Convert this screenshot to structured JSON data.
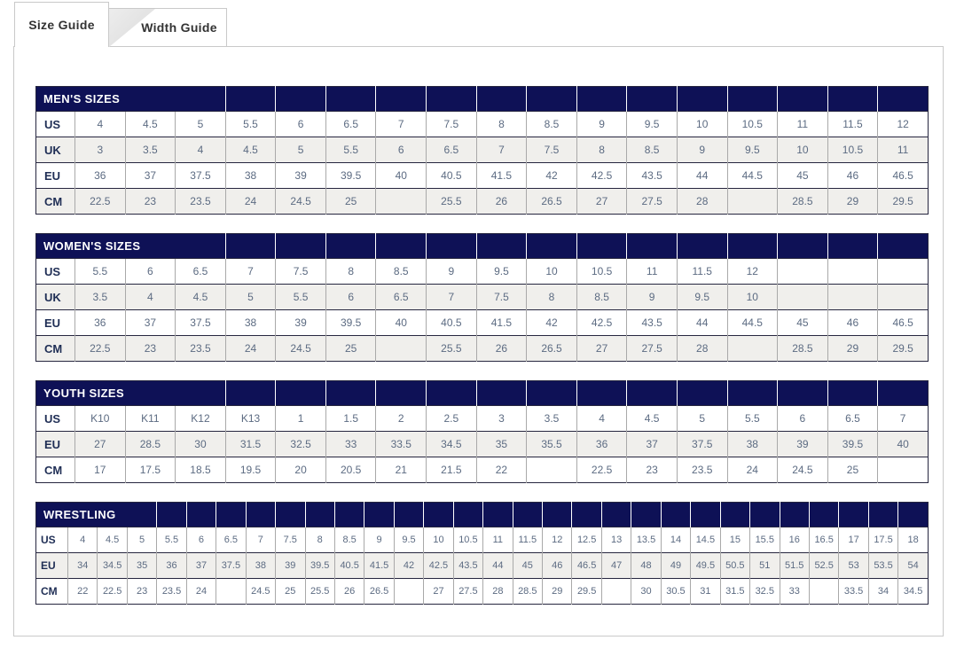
{
  "tabs": [
    {
      "label": "Size Guide",
      "active": true
    },
    {
      "label": "Width Guide",
      "active": false
    }
  ],
  "colors": {
    "table_header_bg": "#0e1156",
    "row_alt_bg": "#f0efec",
    "value_text": "#5c6b82",
    "label_text": "#1f2e55",
    "dark_border": "#26263f",
    "light_border": "#a9a9a9",
    "panel_border": "#c9c9c9"
  },
  "tables": [
    {
      "title": "MEN'S SIZES",
      "rows": [
        {
          "label": "US",
          "values": [
            "4",
            "4.5",
            "5",
            "5.5",
            "6",
            "6.5",
            "7",
            "7.5",
            "8",
            "8.5",
            "9",
            "9.5",
            "10",
            "10.5",
            "11",
            "11.5",
            "12"
          ]
        },
        {
          "label": "UK",
          "values": [
            "3",
            "3.5",
            "4",
            "4.5",
            "5",
            "5.5",
            "6",
            "6.5",
            "7",
            "7.5",
            "8",
            "8.5",
            "9",
            "9.5",
            "10",
            "10.5",
            "11"
          ]
        },
        {
          "label": "EU",
          "values": [
            "36",
            "37",
            "37.5",
            "38",
            "39",
            "39.5",
            "40",
            "40.5",
            "41.5",
            "42",
            "42.5",
            "43.5",
            "44",
            "44.5",
            "45",
            "46",
            "46.5"
          ]
        },
        {
          "label": "CM",
          "values": [
            "22.5",
            "23",
            "23.5",
            "24",
            "24.5",
            "25",
            "",
            "25.5",
            "26",
            "26.5",
            "27",
            "27.5",
            "28",
            "",
            "28.5",
            "29",
            "29.5"
          ]
        }
      ]
    },
    {
      "title": "WOMEN'S SIZES",
      "rows": [
        {
          "label": "US",
          "values": [
            "5.5",
            "6",
            "6.5",
            "7",
            "7.5",
            "8",
            "8.5",
            "9",
            "9.5",
            "10",
            "10.5",
            "11",
            "11.5",
            "12",
            "",
            "",
            ""
          ]
        },
        {
          "label": "UK",
          "values": [
            "3.5",
            "4",
            "4.5",
            "5",
            "5.5",
            "6",
            "6.5",
            "7",
            "7.5",
            "8",
            "8.5",
            "9",
            "9.5",
            "10",
            "",
            "",
            ""
          ]
        },
        {
          "label": "EU",
          "values": [
            "36",
            "37",
            "37.5",
            "38",
            "39",
            "39.5",
            "40",
            "40.5",
            "41.5",
            "42",
            "42.5",
            "43.5",
            "44",
            "44.5",
            "45",
            "46",
            "46.5"
          ]
        },
        {
          "label": "CM",
          "values": [
            "22.5",
            "23",
            "23.5",
            "24",
            "24.5",
            "25",
            "",
            "25.5",
            "26",
            "26.5",
            "27",
            "27.5",
            "28",
            "",
            "28.5",
            "29",
            "29.5"
          ]
        }
      ]
    },
    {
      "title": "YOUTH SIZES",
      "rows": [
        {
          "label": "US",
          "values": [
            "K10",
            "K11",
            "K12",
            "K13",
            "1",
            "1.5",
            "2",
            "2.5",
            "3",
            "3.5",
            "4",
            "4.5",
            "5",
            "5.5",
            "6",
            "6.5",
            "7"
          ]
        },
        {
          "label": "EU",
          "values": [
            "27",
            "28.5",
            "30",
            "31.5",
            "32.5",
            "33",
            "33.5",
            "34.5",
            "35",
            "35.5",
            "36",
            "37",
            "37.5",
            "38",
            "39",
            "39.5",
            "40"
          ]
        },
        {
          "label": "CM",
          "values": [
            "17",
            "17.5",
            "18.5",
            "19.5",
            "20",
            "20.5",
            "21",
            "21.5",
            "22",
            "",
            "22.5",
            "23",
            "23.5",
            "24",
            "24.5",
            "25",
            ""
          ]
        }
      ]
    },
    {
      "title": "WRESTLING",
      "rows": [
        {
          "label": "US",
          "values": [
            "4",
            "4.5",
            "5",
            "5.5",
            "6",
            "6.5",
            "7",
            "7.5",
            "8",
            "8.5",
            "9",
            "9.5",
            "10",
            "10.5",
            "11",
            "11.5",
            "12",
            "12.5",
            "13",
            "13.5",
            "14",
            "14.5",
            "15",
            "15.5",
            "16",
            "16.5",
            "17",
            "17.5",
            "18"
          ]
        },
        {
          "label": "EU",
          "values": [
            "34",
            "34.5",
            "35",
            "36",
            "37",
            "37.5",
            "38",
            "39",
            "39.5",
            "40.5",
            "41.5",
            "42",
            "42.5",
            "43.5",
            "44",
            "45",
            "46",
            "46.5",
            "47",
            "48",
            "49",
            "49.5",
            "50.5",
            "51",
            "51.5",
            "52.5",
            "53",
            "53.5",
            "54"
          ]
        },
        {
          "label": "CM",
          "values": [
            "22",
            "22.5",
            "23",
            "23.5",
            "24",
            "",
            "24.5",
            "25",
            "25.5",
            "26",
            "26.5",
            "",
            "27",
            "27.5",
            "28",
            "28.5",
            "29",
            "29.5",
            "",
            "30",
            "30.5",
            "31",
            "31.5",
            "32.5",
            "33",
            "",
            "33.5",
            "34",
            "34.5"
          ]
        }
      ]
    }
  ]
}
